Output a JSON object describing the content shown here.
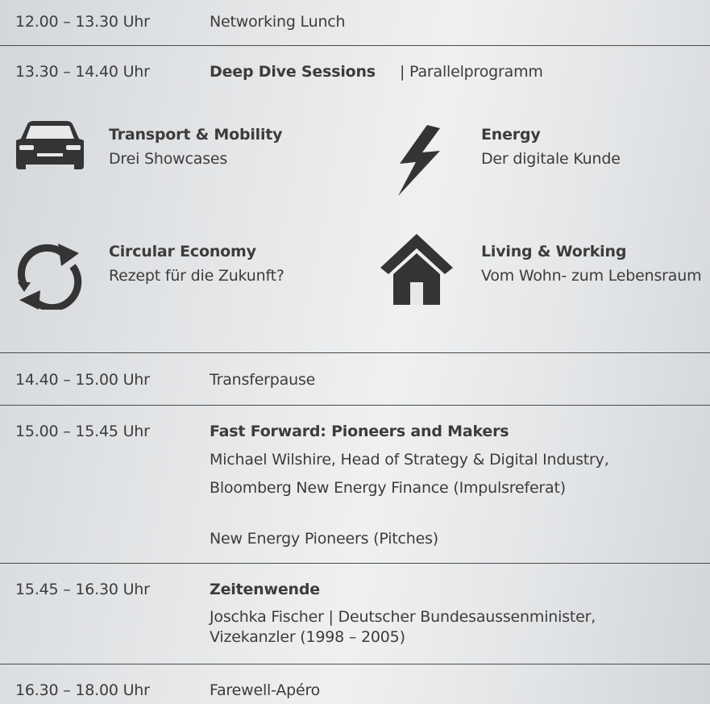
{
  "schedule": {
    "rows": [
      {
        "time": "12.00 – 13.30 Uhr",
        "title": "Networking Lunch"
      },
      {
        "time": "13.30 – 14.40 Uhr",
        "title": "Deep Dive Sessions",
        "subtitle": "| Parallelprogramm"
      },
      {
        "time": "14.40 – 15.00 Uhr",
        "title": "Transferpause"
      },
      {
        "time": "15.00 – 15.45 Uhr",
        "title": "Fast Forward: Pioneers and Makers",
        "lines": [
          "Michael Wilshire, Head of Strategy & Digital Industry,",
          "Bloomberg New Energy Finance (Impulsreferat)",
          "New Energy Pioneers (Pitches)"
        ]
      },
      {
        "time": "15.45 – 16.30 Uhr",
        "title": "Zeitenwende",
        "lines": [
          "Joschka Fischer | Deutscher Bundesaussenminister,",
          "Vizekanzler (1998 – 2005)"
        ]
      },
      {
        "time": "16.30 – 18.00 Uhr",
        "title": "Farewell-Apéro"
      }
    ],
    "sessions": [
      {
        "title": "Transport & Mobility",
        "subtitle": "Drei Showcases"
      },
      {
        "title": "Energy",
        "subtitle": "Der digitale Kunde"
      },
      {
        "title": "Circular Economy",
        "subtitle": "Rezept für die Zukunft?"
      },
      {
        "title": "Living & Working",
        "subtitle": "Vom Wohn- zum Lebensraum"
      }
    ]
  }
}
